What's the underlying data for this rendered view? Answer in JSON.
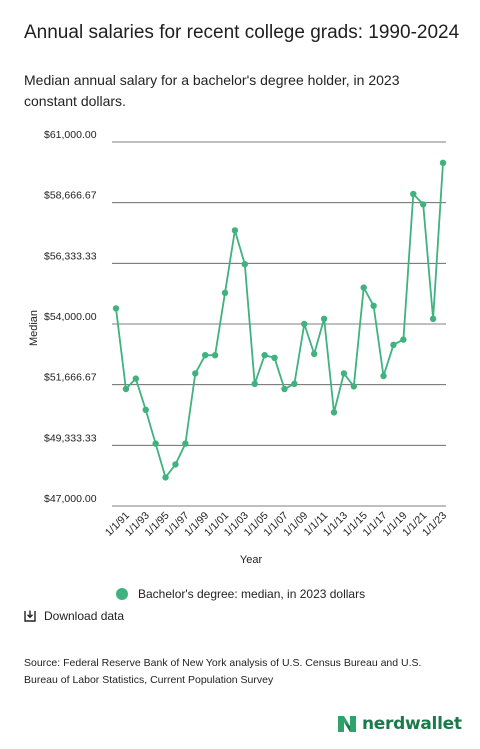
{
  "header": {
    "title": "Annual salaries for recent college grads: 1990-2024",
    "subtitle": "Median annual salary for a bachelor's degree holder, in 2023 constant dollars."
  },
  "legend": {
    "label": "Bachelor's degree: median, in 2023 dollars",
    "color": "#3fb27f"
  },
  "actions": {
    "download_label": "Download data",
    "download_icon": "download-icon"
  },
  "source": "Source: Federal Reserve Bank of New York analysis of U.S. Census Bureau and U.S. Bureau of Labor Statistics, Current Population Survey",
  "brand": {
    "name": "nerdwallet",
    "color": "#1a7a4b",
    "logo_icon": "nerdwallet-logo-icon"
  },
  "chart_data": {
    "type": "line",
    "title": "Annual salaries for recent college grads: 1990-2024",
    "subtitle": "Median annual salary for a bachelor's degree holder, in 2023 constant dollars.",
    "xlabel": "Year",
    "ylabel": "Median",
    "ylim": [
      47000,
      61000
    ],
    "y_ticks": [
      47000,
      49333.33,
      51666.67,
      54000,
      56333.33,
      58666.67,
      61000
    ],
    "y_tick_labels": [
      "$47,000.00",
      "$49,333.33",
      "$51,666.67",
      "$54,000.00",
      "$56,333.33",
      "$58,666.67",
      "$61,000.00"
    ],
    "x_tick_labels": [
      "1/1/91",
      "1/1/93",
      "1/1/95",
      "1/1/97",
      "1/1/99",
      "1/1/01",
      "1/1/03",
      "1/1/05",
      "1/1/07",
      "1/1/09",
      "1/1/11",
      "1/1/13",
      "1/1/15",
      "1/1/17",
      "1/1/19",
      "1/1/21",
      "1/1/23"
    ],
    "grid": "horizontal",
    "legend_position": "bottom",
    "series": [
      {
        "name": "Bachelor's degree: median, in 2023 dollars",
        "color": "#3fb27f",
        "x": [
          "1990",
          "1991",
          "1992",
          "1993",
          "1994",
          "1995",
          "1996",
          "1997",
          "1998",
          "1999",
          "2000",
          "2001",
          "2002",
          "2003",
          "2004",
          "2005",
          "2006",
          "2007",
          "2008",
          "2009",
          "2010",
          "2011",
          "2012",
          "2013",
          "2014",
          "2015",
          "2016",
          "2017",
          "2018",
          "2019",
          "2020",
          "2021",
          "2022",
          "2023"
        ],
        "values": [
          54600,
          51500,
          51900,
          50700,
          49400,
          48100,
          48600,
          49400,
          52100,
          52800,
          52800,
          55200,
          57600,
          56300,
          51700,
          52800,
          52700,
          51500,
          51700,
          54000,
          52850,
          54200,
          50600,
          52100,
          51600,
          55400,
          54700,
          52000,
          53200,
          53400,
          59000,
          58600,
          54200,
          60200
        ]
      }
    ]
  }
}
